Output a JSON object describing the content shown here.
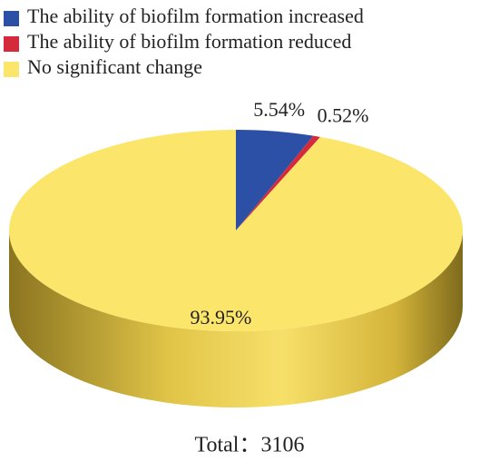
{
  "chart_data": {
    "type": "pie3d",
    "categories": [
      "The ability of biofilm formation increased",
      "The ability of biofilm formation reduced",
      "No significant change"
    ],
    "values": [
      5.54,
      0.52,
      93.95
    ],
    "value_labels": [
      "5.54%",
      "0.52%",
      "93.95%"
    ],
    "colors": [
      "#2c50a6",
      "#d42a3c",
      "#fce56b"
    ],
    "note": "Total：3106"
  }
}
